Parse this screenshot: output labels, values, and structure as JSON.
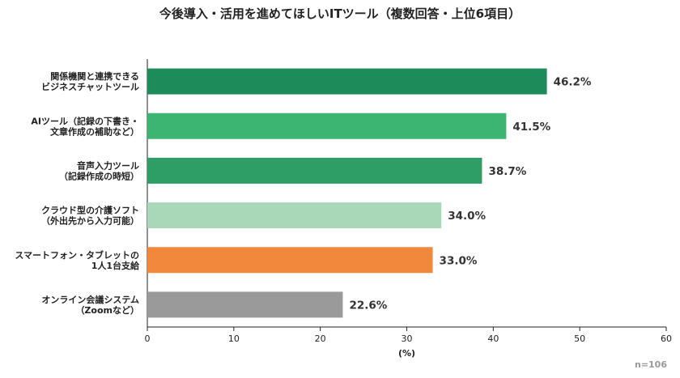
{
  "chart_data": {
    "type": "bar",
    "orientation": "horizontal",
    "title": "今後導入・活用を進めてほしいITツール（複数回答・上位6項目）",
    "categories": [
      [
        "関係機関と連携できる",
        "ビジネスチャットツール"
      ],
      [
        "AIツール（記録の下書き・",
        "文章作成の補助など）"
      ],
      [
        "音声入力ツール",
        "（記録作成の時短）"
      ],
      [
        "クラウド型の介護ソフト",
        "（外出先から入力可能）"
      ],
      [
        "スマートフォン・タブレットの",
        "1人1台支給"
      ],
      [
        "オンライン会議システム",
        "（Zoomなど）"
      ]
    ],
    "values": [
      46.2,
      41.5,
      38.7,
      34.0,
      33.0,
      22.6
    ],
    "value_labels": [
      "46.2%",
      "41.5%",
      "38.7%",
      "34.0%",
      "33.0%",
      "22.6%"
    ],
    "bar_colors": [
      "#1e8c5a",
      "#3db572",
      "#2e9e66",
      "#a9d8b9",
      "#f0893b",
      "#9a9a9a"
    ],
    "xlabel": "(%)",
    "xlim": [
      0,
      60
    ],
    "xticks": [
      "0",
      "10",
      "20",
      "30",
      "40",
      "50",
      "60"
    ],
    "grid": false,
    "sample_size": "n=106"
  }
}
